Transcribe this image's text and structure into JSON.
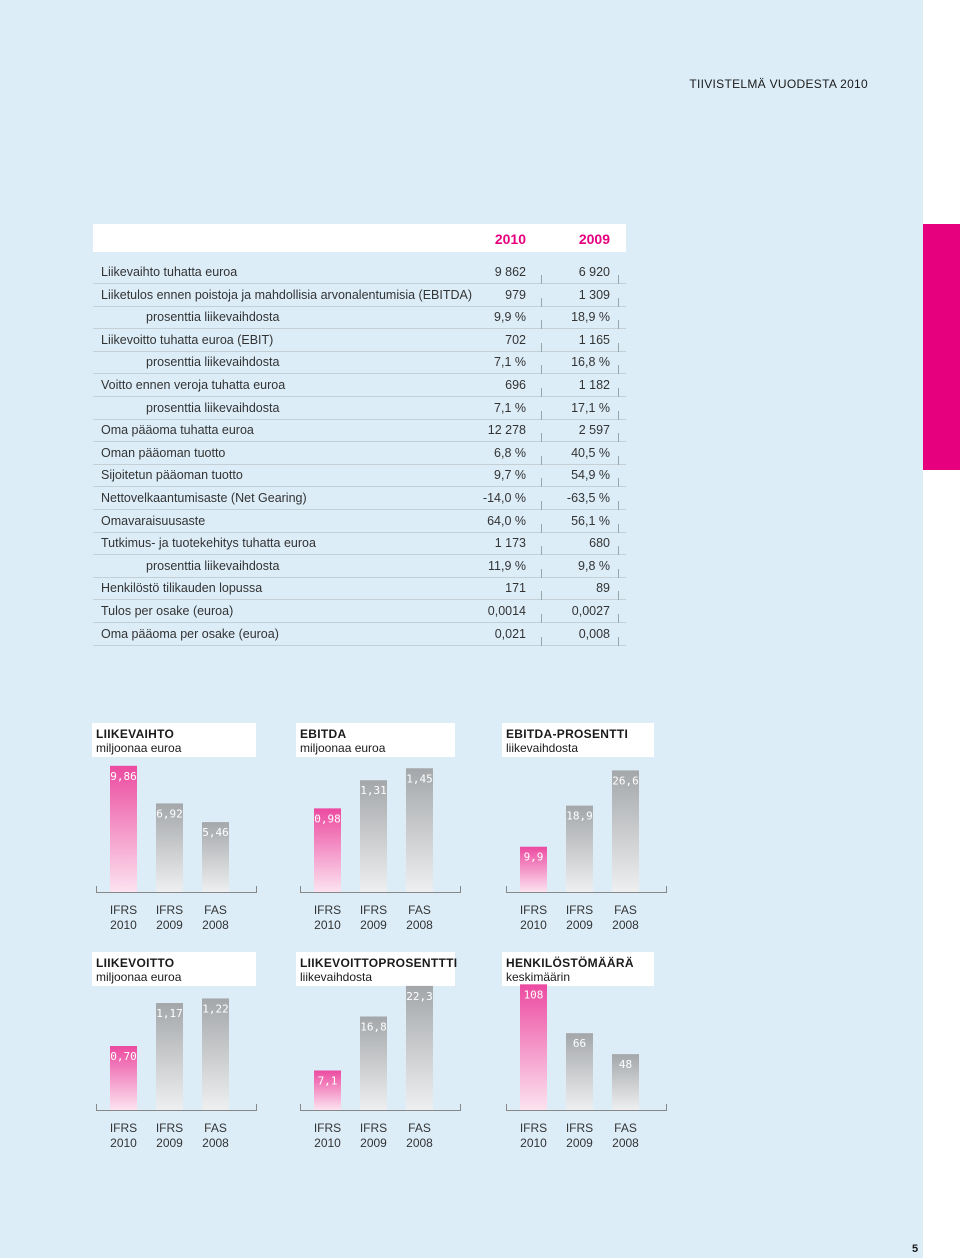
{
  "header": {
    "title": "TIIVISTELMÄ VUODESTA 2010"
  },
  "page_number": "5",
  "colors": {
    "accent": "#e6007e",
    "background": "#dcedf8"
  },
  "key_figures": {
    "columns": [
      "2010",
      "2009"
    ],
    "rows": [
      {
        "label": "Liikevaihto tuhatta euroa",
        "v2010": "9 862",
        "v2009": "6 920",
        "indent": false
      },
      {
        "label": "Liiketulos ennen poistoja ja mahdollisia arvonalentumisia (EBITDA)",
        "v2010": "979",
        "v2009": "1 309",
        "indent": false
      },
      {
        "label": "prosenttia liikevaihdosta",
        "v2010": "9,9 %",
        "v2009": "18,9 %",
        "indent": true
      },
      {
        "label": "Liikevoitto tuhatta euroa (EBIT)",
        "v2010": "702",
        "v2009": "1 165",
        "indent": false
      },
      {
        "label": "prosenttia liikevaihdosta",
        "v2010": "7,1 %",
        "v2009": "16,8 %",
        "indent": true
      },
      {
        "label": "Voitto ennen veroja tuhatta euroa",
        "v2010": "696",
        "v2009": "1 182",
        "indent": false
      },
      {
        "label": "prosenttia liikevaihdosta",
        "v2010": "7,1 %",
        "v2009": "17,1 %",
        "indent": true
      },
      {
        "label": "Oma pääoma tuhatta euroa",
        "v2010": "12 278",
        "v2009": "2 597",
        "indent": false
      },
      {
        "label": "Oman pääoman tuotto",
        "v2010": "6,8 %",
        "v2009": "40,5 %",
        "indent": false
      },
      {
        "label": "Sijoitetun pääoman tuotto",
        "v2010": "9,7 %",
        "v2009": "54,9 %",
        "indent": false
      },
      {
        "label": "Nettovelkaantumisaste (Net Gearing)",
        "v2010": "-14,0 %",
        "v2009": "-63,5 %",
        "indent": false
      },
      {
        "label": "Omavaraisuusaste",
        "v2010": "64,0 %",
        "v2009": "56,1 %",
        "indent": false
      },
      {
        "label": "Tutkimus- ja tuotekehitys tuhatta euroa",
        "v2010": "1 173",
        "v2009": "680",
        "indent": false
      },
      {
        "label": "prosenttia liikevaihdosta",
        "v2010": "11,9 %",
        "v2009": "9,8 %",
        "indent": true
      },
      {
        "label": "Henkilöstö tilikauden lopussa",
        "v2010": "171",
        "v2009": "89",
        "indent": false
      },
      {
        "label": "Tulos per osake (euroa)",
        "v2010": "0,0014",
        "v2009": "0,0027",
        "indent": false
      },
      {
        "label": "Oma pääoma per osake (euroa)",
        "v2010": "0,021",
        "v2009": "0,008",
        "indent": false
      }
    ]
  },
  "chart_data": [
    {
      "type": "bar",
      "title": "LIIKEVAIHTO",
      "subtitle": "miljoonaa euroa",
      "categories": [
        [
          "IFRS",
          "2010"
        ],
        [
          "IFRS",
          "2009"
        ],
        [
          "FAS",
          "2008"
        ]
      ],
      "values": [
        9.86,
        6.92,
        5.46
      ],
      "labels": [
        "9,86",
        "6,92",
        "5,46"
      ],
      "ylim": [
        0,
        10
      ]
    },
    {
      "type": "bar",
      "title": "EBITDA",
      "subtitle": "miljoonaa euroa",
      "categories": [
        [
          "IFRS",
          "2010"
        ],
        [
          "IFRS",
          "2009"
        ],
        [
          "FAS",
          "2008"
        ]
      ],
      "values": [
        0.98,
        1.31,
        1.45
      ],
      "labels": [
        "0,98",
        "1,31",
        "1,45"
      ],
      "ylim": [
        0,
        1.5
      ]
    },
    {
      "type": "bar",
      "title": "EBITDA-PROSENTTI",
      "subtitle": "liikevaihdosta",
      "categories": [
        [
          "IFRS",
          "2010"
        ],
        [
          "IFRS",
          "2009"
        ],
        [
          "FAS",
          "2008"
        ]
      ],
      "values": [
        9.9,
        18.9,
        26.6
      ],
      "labels": [
        "9,9",
        "18,9",
        "26,6"
      ],
      "ylim": [
        0,
        28
      ]
    },
    {
      "type": "bar",
      "title": "LIIKEVOITTO",
      "subtitle": "miljoonaa euroa",
      "categories": [
        [
          "IFRS",
          "2010"
        ],
        [
          "IFRS",
          "2009"
        ],
        [
          "FAS",
          "2008"
        ]
      ],
      "values": [
        0.7,
        1.17,
        1.22
      ],
      "labels": [
        "0,70",
        "1,17",
        "1,22"
      ],
      "ylim": [
        0,
        1.4
      ]
    },
    {
      "type": "bar",
      "title": "LIIKEVOITTOPROSENTTTI",
      "subtitle": "liikevaihdosta",
      "categories": [
        [
          "IFRS",
          "2010"
        ],
        [
          "IFRS",
          "2009"
        ],
        [
          "FAS",
          "2008"
        ]
      ],
      "values": [
        7.1,
        16.8,
        22.3
      ],
      "labels": [
        "7,1",
        "16,8",
        "22,3"
      ],
      "ylim": [
        0,
        23
      ]
    },
    {
      "type": "bar",
      "title": "HENKILÖSTÖMÄÄRÄ",
      "subtitle": "keskimäärin",
      "categories": [
        [
          "IFRS",
          "2010"
        ],
        [
          "IFRS",
          "2009"
        ],
        [
          "FAS",
          "2008"
        ]
      ],
      "values": [
        108,
        66,
        48
      ],
      "labels": [
        "108",
        "66",
        "48"
      ],
      "ylim": [
        0,
        110
      ]
    }
  ]
}
